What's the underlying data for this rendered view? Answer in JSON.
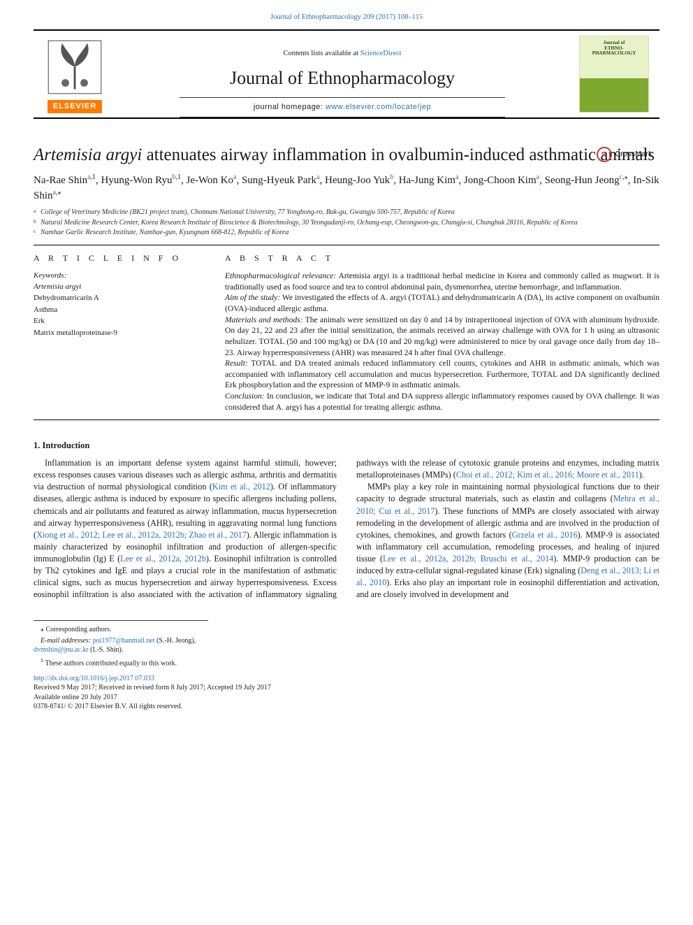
{
  "runningHead": {
    "text": "Journal of Ethnopharmacology 209 (2017) 108–115",
    "link_color": "#2a6fb5"
  },
  "headerBox": {
    "contents_prefix": "Contents lists available at ",
    "contents_link": "ScienceDirect",
    "journal_name": "Journal of Ethnopharmacology",
    "homepage_prefix": "journal homepage: ",
    "homepage_link": "www.elsevier.com/locate/jep",
    "publisher_word": "ELSEVIER",
    "cover_title_line1": "Journal of",
    "cover_title_line2": "ETHNO-",
    "cover_title_line3": "PHARMACOLOGY"
  },
  "crossmark": {
    "label": "CrossMark"
  },
  "title": {
    "italic_part": "Artemisia argyi",
    "rest": " attenuates airway inflammation in ovalbumin-induced asthmatic animals"
  },
  "authors_html": "Na-Rae Shin<sup><a class='aff'>a</a>,1</sup>, Hyung-Won Ryu<sup><a class='aff'>b</a>,1</sup>, Je-Won Ko<sup><a class='aff'>a</a></sup>, Sung-Hyeuk Park<sup><a class='aff'>a</a></sup>, Heung-Joo Yuk<sup><a class='aff'>b</a></sup>, Ha-Jung Kim<sup><a class='aff'>a</a></sup>, Jong-Choon Kim<sup><a class='aff'>a</a></sup>, Seong-Hun Jeong<sup><a class='aff'>c</a>,⁎</sup>, In-Sik Shin<sup><a class='aff'>a</a>,⁎</sup>",
  "affiliations": [
    {
      "label": "a",
      "text": "College of Veterinary Medicine (BK21 project team), Chonnam National University, 77 Yongbong-ro, Buk-gu, Gwangju 500-757, Republic of Korea"
    },
    {
      "label": "b",
      "text": "Natural Medicine Research Center, Korea Research Institute of Bioscience & Biotechnology, 30 Yeongudanji-ro, Ochang-eup, Cheongwon-gu, Chungju-si, Chungbuk 28116, Republic of Korea"
    },
    {
      "label": "c",
      "text": "Namhae Garlic Research Institute, Namhae-gun, Kyungnam 668-812, Republic of Korea"
    }
  ],
  "articleInfo": {
    "heading": "A R T I C L E  I N F O",
    "kw_label": "Keywords:",
    "keywords": [
      "Artemisia argyi",
      "Dehydromatricarin A",
      "Asthma",
      "Erk",
      "Matrix metalloproteinase-9"
    ]
  },
  "abstract": {
    "heading": "A B S T R A C T",
    "paras": [
      {
        "lead": "Ethnopharmacological relevance:",
        "text": " Artemisia argyi is a traditional herbal medicine in Korea and commonly called as mugwort. It is traditionally used as food source and tea to control abdominal pain, dysmenorrhea, uterine hemorrhage, and inflammation."
      },
      {
        "lead": "Aim of the study:",
        "text": " We investigated the effects of A. argyi (TOTAL) and dehydromatricarin A (DA), its active component on ovalbumin (OVA)-induced allergic asthma."
      },
      {
        "lead": "Materials and methods:",
        "text": " The animals were sensitized on day 0 and 14 by intraperitoneal injection of OVA with aluminum hydroxide. On day 21, 22 and 23 after the initial sensitization, the animals received an airway challenge with OVA for 1 h using an ultrasonic nebulizer. TOTAL (50 and 100 mg/kg) or DA (10 and 20 mg/kg) were administered to mice by oral gavage once daily from day 18–23. Airway hyperresponsiveness (AHR) was measured 24 h after final OVA challenge."
      },
      {
        "lead": "Result:",
        "text": " TOTAL and DA treated animals reduced inflammatory cell counts, cytokines and AHR in asthmatic animals, which was accompanied with inflammatory cell accumulation and mucus hypersecretion. Furthermore, TOTAL and DA significantly declined Erk phosphorylation and the expression of MMP-9 in asthmatic animals."
      },
      {
        "lead": "Conclusion:",
        "text": " In conclusion, we indicate that Total and DA suppress allergic inflammatory responses caused by OVA challenge. It was considered that A. argyi has a potential for treating allergic asthma."
      }
    ]
  },
  "section1": {
    "heading": "1. Introduction"
  },
  "body": {
    "p1_pre": "Inflammation is an important defense system against harmful stimuli, however; excess responses causes various diseases such as allergic asthma, arthritis and dermatitis via destruction of normal physiological condition (",
    "p1_ref1": "Kim et al., 2012",
    "p1_mid1": "). Of inflammatory diseases, allergic asthma is induced by exposure to specific allergens including pollens, chemicals and air pollutants and featured as airway inflammation, mucus hypersecretion and airway hyperresponsiveness (AHR), resulting in aggravating normal lung functions (",
    "p1_ref2": "Xiong et al., 2012; Lee et al., 2012a, 2012b; Zhao et al., 2017",
    "p1_mid2": "). Allergic inflammation is mainly characterized by eosinophil infiltration and production of allergen-specific immunoglobulin (Ig) E (",
    "p1_ref3": "Lee et al., 2012a, 2012b",
    "p1_mid3": "). Eosinophil infiltration is controlled by Th2 cytokines and IgE and plays a crucial role in the manifestation of asthmatic clinical signs, such as mucus hypersecretion and airway hyperresponsiveness. Excess eosinophil infiltration is also associated with the activation of inflammatory signaling pathways with the release of cytotoxic granule proteins and enzymes, including matrix metalloproteinases (MMPs) (",
    "p1_ref4": "Choi et al., 2012; Kim et al., 2016; Moore et al., 2011",
    "p1_end": ").",
    "p2_pre": "MMPs play a key role in maintaining normal physiological functions due to their capacity to degrade structural materials, such as elastin and collagens (",
    "p2_ref1": "Mehra et al., 2010; Cui et al., 2017",
    "p2_mid1": "). These functions of MMPs are closely associated with airway remodeling in the development of allergic asthma and are involved in the production of cytokines, chemokines, and growth factors (",
    "p2_ref2": "Grzela et al., 2016",
    "p2_mid2": "). MMP-9 is associated with inflammatory cell accumulation, remodeling processes, and healing of injured tissue (",
    "p2_ref3": "Lee et al., 2012a, 2012b; Bruschi et al., 2014",
    "p2_mid3": "). MMP-9 production can be induced by extra-cellular signal-regulated kinase (Erk) signaling (",
    "p2_ref4": "Deng et al., 2013; Li et al., 2010",
    "p2_end": "). Erks also play an important role in eosinophil differentiation and activation, and are closely involved in development and"
  },
  "footnotes": {
    "corr": "⁎ Corresponding authors.",
    "email_label": "E-mail addresses:",
    "email1": "poi1977@hanmail.net",
    "email1_who": " (S.-H. Jeong), ",
    "email2": "dvmshin@jnu.ac.kr",
    "email2_who": " (I.-S. Shin).",
    "equal": "1 These authors contributed equally to this work."
  },
  "footer": {
    "doi": "http://dx.doi.org/10.1016/j.jep.2017.07.033",
    "received": "Received 9 May 2017; Received in revised form 8 July 2017; Accepted 19 July 2017",
    "available": "Available online 20 July 2017",
    "issn": "0378-8741/ © 2017 Elsevier B.V. All rights reserved."
  },
  "colors": {
    "link": "#2a6fb5",
    "elsevier_orange": "#ff7a00",
    "cover_bg": "#e8f2c8",
    "cover_band": "#7ea82e",
    "crossmark_ring": "#c0392b"
  }
}
